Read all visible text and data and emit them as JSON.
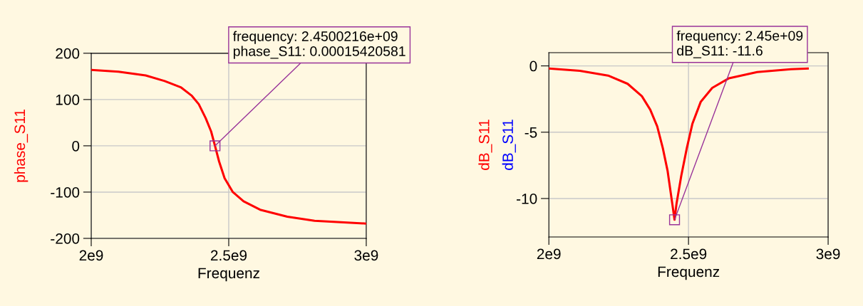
{
  "chart_data": [
    {
      "type": "line",
      "xlabel": "Frequenz",
      "xlim": [
        2000000000,
        3000000000
      ],
      "ylim": [
        -200,
        200
      ],
      "xticks": [
        {
          "value": 2000000000,
          "label": "2e9"
        },
        {
          "value": 2500000000,
          "label": "2.5e9"
        },
        {
          "value": 3000000000,
          "label": "3e9"
        }
      ],
      "yticks": [
        -200,
        -100,
        0,
        100,
        200
      ],
      "grid": true,
      "legend": false,
      "x": [
        2000000000,
        2099000000,
        2198000000,
        2267000000,
        2327000000,
        2366000000,
        2391000000,
        2416000000,
        2436000000,
        2450000000,
        2465000000,
        2485000000,
        2515000000,
        2554000000,
        2614000000,
        2713000000,
        2812000000,
        3000000000
      ],
      "series": [
        {
          "name": "phase_S11",
          "color": "#ff0000",
          "values": [
            164,
            160,
            152,
            140,
            126,
            108,
            90,
            60,
            31,
            0,
            -34,
            -70,
            -100,
            -120,
            -138,
            -153,
            -162,
            -168
          ]
        }
      ],
      "annotations": [
        {
          "text": "frequency: 2.4500216e+09\nphase_S11: 0.00015420581",
          "x": 2450021600,
          "y": 0.00015420581
        }
      ]
    },
    {
      "type": "line",
      "xlabel": "Frequenz",
      "xlim": [
        2000000000,
        3000000000
      ],
      "ylim": [
        -12.9,
        1
      ],
      "xticks": [
        {
          "value": 2000000000,
          "label": "2e9"
        },
        {
          "value": 2500000000,
          "label": "2.5e9"
        },
        {
          "value": 3000000000,
          "label": "3e9"
        }
      ],
      "yticks": [
        -10,
        -5,
        0
      ],
      "grid": true,
      "legend": false,
      "x": [
        2000000000,
        2111000000,
        2212000000,
        2282000000,
        2333000000,
        2363000000,
        2388000000,
        2408000000,
        2425000000,
        2442000000,
        2450000000,
        2457000000,
        2474000000,
        2494000000,
        2514000000,
        2544000000,
        2585000000,
        2645000000,
        2746000000,
        2867000000,
        2927000000
      ],
      "series": [
        {
          "name": "dB_S11",
          "color": "#ff0000",
          "values": [
            -0.2,
            -0.37,
            -0.73,
            -1.35,
            -2.28,
            -3.3,
            -4.56,
            -6.2,
            -7.9,
            -10.4,
            -11.6,
            -10.4,
            -8.3,
            -6.2,
            -4.36,
            -2.7,
            -1.66,
            -0.93,
            -0.46,
            -0.25,
            -0.2
          ]
        },
        {
          "name": "dB_S11",
          "color": "#0000ff",
          "values": [
            null,
            null,
            null,
            null,
            null,
            null,
            null,
            null,
            null,
            null,
            null,
            null,
            null,
            null,
            null,
            null,
            null,
            null,
            null,
            null,
            null
          ]
        }
      ],
      "annotations": [
        {
          "text": "frequency: 2.45e+09\ndB_S11: -11.6",
          "x": 2450000000,
          "y": -11.6
        }
      ]
    }
  ]
}
